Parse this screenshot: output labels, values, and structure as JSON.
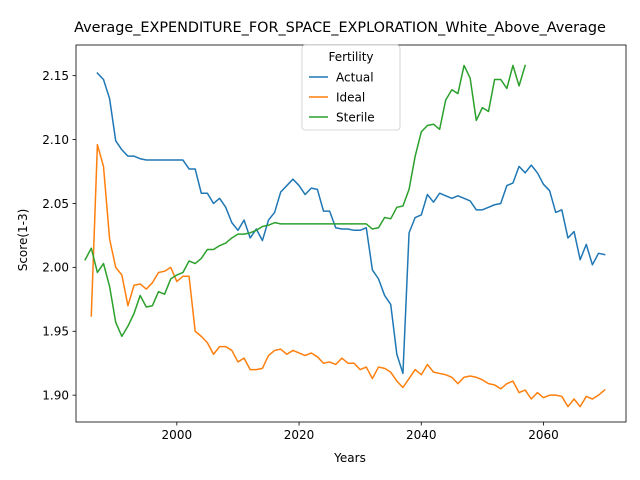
{
  "chart_data": {
    "type": "line",
    "title": "Average_EXPENDITURE_FOR_SPACE_EXPLORATION_White_Above_Average",
    "xlabel": "Years",
    "ylabel": "Score(1-3)",
    "xlim": [
      1983.5,
      2073.5
    ],
    "ylim": [
      1.879,
      2.174
    ],
    "xticks": [
      2000,
      2020,
      2040,
      2060
    ],
    "yticks": [
      1.9,
      1.95,
      2.0,
      2.05,
      2.1,
      2.15
    ],
    "ytick_labels": [
      "1.90",
      "1.95",
      "2.00",
      "2.05",
      "2.10",
      "2.15"
    ],
    "grid": false,
    "legend": {
      "title": "Fertility",
      "placement": "upper-center"
    },
    "series": [
      {
        "name": "Actual",
        "color": "#1f77b4",
        "x": [
          1987,
          1988,
          1989,
          1990,
          1991,
          1992,
          1993,
          1994,
          1995,
          1996,
          1997,
          1998,
          1999,
          2000,
          2001,
          2002,
          2003,
          2004,
          2005,
          2006,
          2007,
          2008,
          2009,
          2010,
          2011,
          2012,
          2013,
          2014,
          2015,
          2016,
          2017,
          2018,
          2019,
          2020,
          2021,
          2022,
          2023,
          2024,
          2025,
          2026,
          2027,
          2028,
          2029,
          2030,
          2031,
          2032,
          2033,
          2034,
          2035,
          2036,
          2037,
          2038,
          2039,
          2040,
          2041,
          2042,
          2043,
          2044,
          2045,
          2046,
          2047,
          2048,
          2049,
          2050,
          2051,
          2052,
          2053,
          2054,
          2055,
          2056,
          2057,
          2058,
          2059,
          2060,
          2061,
          2062,
          2063,
          2064,
          2065,
          2066,
          2067,
          2068,
          2069,
          2070
        ],
        "values": [
          2.152,
          2.147,
          2.132,
          2.099,
          2.092,
          2.087,
          2.087,
          2.085,
          2.084,
          2.084,
          2.084,
          2.084,
          2.084,
          2.084,
          2.084,
          2.077,
          2.077,
          2.058,
          2.058,
          2.05,
          2.054,
          2.047,
          2.035,
          2.029,
          2.037,
          2.023,
          2.03,
          2.021,
          2.037,
          2.043,
          2.059,
          2.064,
          2.069,
          2.064,
          2.057,
          2.062,
          2.061,
          2.044,
          2.044,
          2.031,
          2.03,
          2.03,
          2.029,
          2.029,
          2.031,
          1.998,
          1.991,
          1.978,
          1.971,
          1.932,
          1.917,
          2.027,
          2.039,
          2.041,
          2.057,
          2.051,
          2.058,
          2.056,
          2.054,
          2.056,
          2.054,
          2.052,
          2.045,
          2.045,
          2.047,
          2.049,
          2.05,
          2.064,
          2.066,
          2.079,
          2.074,
          2.08,
          2.074,
          2.065,
          2.06,
          2.043,
          2.045,
          2.023,
          2.028,
          2.006,
          2.018,
          2.002,
          2.011,
          2.01
        ]
      },
      {
        "name": "Ideal",
        "color": "#ff7f0e",
        "x": [
          1986,
          1987,
          1988,
          1989,
          1990,
          1991,
          1992,
          1993,
          1994,
          1995,
          1996,
          1997,
          1998,
          1999,
          2000,
          2001,
          2002,
          2003,
          2004,
          2005,
          2006,
          2007,
          2008,
          2009,
          2010,
          2011,
          2012,
          2013,
          2014,
          2015,
          2016,
          2017,
          2018,
          2019,
          2020,
          2021,
          2022,
          2023,
          2024,
          2025,
          2026,
          2027,
          2028,
          2029,
          2030,
          2031,
          2032,
          2033,
          2034,
          2035,
          2036,
          2037,
          2038,
          2039,
          2040,
          2041,
          2042,
          2043,
          2044,
          2045,
          2046,
          2047,
          2048,
          2049,
          2050,
          2051,
          2052,
          2053,
          2054,
          2055,
          2056,
          2057,
          2058,
          2059,
          2060,
          2061,
          2062,
          2063,
          2064,
          2065,
          2066,
          2067,
          2068,
          2069,
          2070
        ],
        "values": [
          1.962,
          2.096,
          2.079,
          2.022,
          2.0,
          1.994,
          1.97,
          1.986,
          1.987,
          1.983,
          1.988,
          1.996,
          1.997,
          2.0,
          1.989,
          1.993,
          1.993,
          1.95,
          1.946,
          1.941,
          1.932,
          1.938,
          1.938,
          1.935,
          1.926,
          1.929,
          1.92,
          1.92,
          1.921,
          1.931,
          1.935,
          1.936,
          1.932,
          1.935,
          1.933,
          1.931,
          1.933,
          1.93,
          1.925,
          1.926,
          1.924,
          1.929,
          1.925,
          1.925,
          1.92,
          1.922,
          1.913,
          1.922,
          1.921,
          1.918,
          1.911,
          1.906,
          1.913,
          1.92,
          1.916,
          1.924,
          1.918,
          1.917,
          1.916,
          1.914,
          1.909,
          1.914,
          1.915,
          1.914,
          1.912,
          1.909,
          1.908,
          1.905,
          1.909,
          1.911,
          1.902,
          1.904,
          1.897,
          1.902,
          1.898,
          1.9,
          1.9,
          1.899,
          1.891,
          1.897,
          1.891,
          1.899,
          1.897,
          1.9,
          1.904
        ]
      },
      {
        "name": "Sterile",
        "color": "#2ca02c",
        "x": [
          1985,
          1986,
          1987,
          1988,
          1989,
          1990,
          1991,
          1992,
          1993,
          1994,
          1995,
          1996,
          1997,
          1998,
          1999,
          2000,
          2001,
          2002,
          2003,
          2004,
          2005,
          2006,
          2007,
          2008,
          2009,
          2010,
          2011,
          2012,
          2013,
          2014,
          2015,
          2016,
          2017,
          2018,
          2019,
          2020,
          2021,
          2022,
          2023,
          2024,
          2025,
          2026,
          2027,
          2028,
          2029,
          2030,
          2031,
          2032,
          2033,
          2034,
          2035,
          2036,
          2037,
          2038,
          2039,
          2040,
          2041,
          2042,
          2043,
          2044,
          2045,
          2046,
          2047,
          2048,
          2049,
          2050,
          2051,
          2052,
          2053,
          2054,
          2055,
          2056,
          2057
        ],
        "values": [
          2.006,
          2.015,
          1.996,
          2.003,
          1.985,
          1.957,
          1.946,
          1.954,
          1.964,
          1.978,
          1.969,
          1.97,
          1.981,
          1.979,
          1.991,
          1.994,
          1.996,
          2.005,
          2.003,
          2.007,
          2.014,
          2.014,
          2.017,
          2.019,
          2.023,
          2.026,
          2.026,
          2.027,
          2.029,
          2.032,
          2.033,
          2.035,
          2.034,
          2.034,
          2.034,
          2.034,
          2.034,
          2.034,
          2.034,
          2.034,
          2.034,
          2.034,
          2.034,
          2.034,
          2.034,
          2.034,
          2.034,
          2.03,
          2.031,
          2.039,
          2.038,
          2.047,
          2.048,
          2.061,
          2.087,
          2.106,
          2.111,
          2.112,
          2.108,
          2.131,
          2.139,
          2.136,
          2.158,
          2.148,
          2.115,
          2.125,
          2.122,
          2.147,
          2.147,
          2.14,
          2.158,
          2.142,
          2.158
        ]
      }
    ]
  }
}
